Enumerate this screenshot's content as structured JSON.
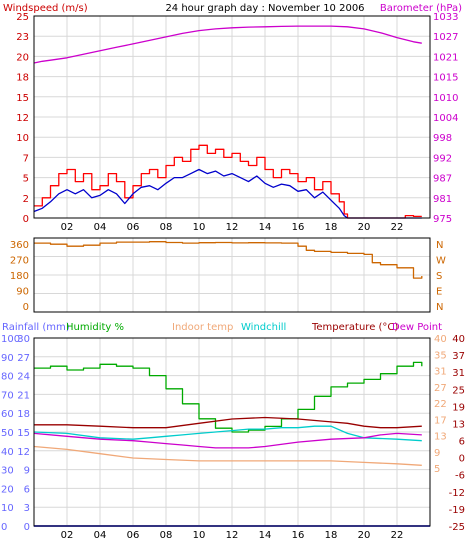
{
  "chart_data": [
    {
      "type": "line",
      "title": "24 hour graph day : November 10 2006",
      "left_axis_label": "Windspeed (m/s)",
      "right_axis_label": "Barometer (hPa)",
      "x_ticks": [
        "02",
        "04",
        "06",
        "08",
        "10",
        "12",
        "14",
        "16",
        "18",
        "20",
        "22"
      ],
      "x_range": [
        0,
        24
      ],
      "left_ylim": [
        0,
        25
      ],
      "left_ticks": [
        "0",
        "2",
        "5",
        "7",
        "10",
        "12",
        "15",
        "18",
        "20",
        "23",
        "25"
      ],
      "right_ylim": [
        975,
        1033
      ],
      "right_ticks": [
        "975",
        "981",
        "987",
        "992",
        "998",
        "1004",
        "1010",
        "1015",
        "1021",
        "1027",
        "1033"
      ],
      "grid": true,
      "colors": {
        "gust": "#ff0000",
        "wind": "#0000cc",
        "barometer": "#cc00cc",
        "left_label": "#cc0000"
      },
      "series": [
        {
          "axis": "right",
          "x": [
            0,
            0.5,
            1,
            2,
            3,
            4,
            5,
            6,
            7,
            8,
            9,
            10,
            11,
            12,
            13,
            14,
            15,
            16,
            17,
            18,
            19,
            20,
            21,
            22,
            23,
            23.5
          ],
          "values": [
            1019.5,
            1020,
            1020.3,
            1021,
            1022,
            1023,
            1024,
            1025,
            1026,
            1027,
            1028,
            1028.8,
            1029.3,
            1029.6,
            1029.8,
            1029.9,
            1030,
            1030.1,
            1030.1,
            1030.1,
            1029.9,
            1029.3,
            1028.2,
            1026.8,
            1025.6,
            1025.2
          ]
        },
        {
          "axis": "left",
          "x": [
            0,
            0.5,
            1,
            1.5,
            2,
            2.5,
            3,
            3.5,
            4,
            4.5,
            5,
            5.5,
            6,
            6.5,
            7,
            7.5,
            8,
            8.5,
            9,
            9.5,
            10,
            10.5,
            11,
            11.5,
            12,
            12.5,
            13,
            13.5,
            14,
            14.5,
            15,
            15.5,
            16,
            16.5,
            17,
            17.5,
            18,
            18.5,
            18.8,
            19,
            20,
            21,
            22,
            22.5,
            23,
            23.5
          ],
          "values": [
            1.5,
            2.5,
            4,
            5.5,
            6,
            4.5,
            5.5,
            3.5,
            4,
            5.5,
            4.5,
            2.5,
            4,
            5.5,
            6,
            5,
            6.5,
            7.5,
            7,
            8.5,
            9,
            8,
            8.5,
            7.5,
            8,
            7,
            6.5,
            7.5,
            6,
            5,
            6,
            5.5,
            4.5,
            5,
            3.5,
            4.5,
            3,
            2,
            0.5,
            0,
            0,
            0,
            0,
            0.3,
            0.2,
            0.2
          ]
        },
        {
          "axis": "left",
          "x": [
            0,
            0.5,
            1,
            1.5,
            2,
            2.5,
            3,
            3.5,
            4,
            4.5,
            5,
            5.5,
            6,
            6.5,
            7,
            7.5,
            8,
            8.5,
            9,
            9.5,
            10,
            10.5,
            11,
            11.5,
            12,
            12.5,
            13,
            13.5,
            14,
            14.5,
            15,
            15.5,
            16,
            16.5,
            17,
            17.5,
            18,
            18.5,
            18.8,
            19,
            20,
            21,
            22,
            23,
            23.5
          ],
          "values": [
            0.8,
            1.2,
            2,
            3,
            3.5,
            3,
            3.5,
            2.5,
            2.8,
            3.5,
            3,
            1.8,
            3,
            3.8,
            4,
            3.5,
            4.3,
            5,
            5,
            5.5,
            6,
            5.5,
            5.8,
            5.2,
            5.5,
            5,
            4.5,
            5.2,
            4.3,
            3.8,
            4.2,
            4,
            3.3,
            3.5,
            2.5,
            3.2,
            2.2,
            1.2,
            0.3,
            0,
            0,
            0,
            0,
            0,
            0
          ]
        }
      ]
    },
    {
      "type": "line",
      "x_ticks": [
        "02",
        "04",
        "06",
        "08",
        "10",
        "12",
        "14",
        "16",
        "18",
        "20",
        "22"
      ],
      "x_range": [
        0,
        24
      ],
      "ylim": [
        0,
        360
      ],
      "left_ticks": [
        "0",
        "90",
        "180",
        "270",
        "360"
      ],
      "right_ticks": [
        "N",
        "E",
        "S",
        "W",
        "N"
      ],
      "grid": true,
      "colors": {
        "direction": "#cc6600",
        "left_ticks": "#cc6600",
        "right_ticks": "#cc6600"
      },
      "series": [
        {
          "x": [
            0,
            1,
            2,
            3,
            4,
            5,
            6,
            7,
            8,
            9,
            10,
            11,
            12,
            13,
            14,
            15,
            16,
            16.5,
            17,
            18,
            19,
            20,
            20.5,
            21,
            22,
            23,
            23.5
          ],
          "values": [
            335,
            330,
            320,
            325,
            335,
            340,
            340,
            342,
            338,
            335,
            337,
            338,
            336,
            337,
            336,
            335,
            320,
            300,
            295,
            290,
            285,
            280,
            240,
            230,
            215,
            165,
            175
          ]
        }
      ]
    },
    {
      "type": "line",
      "x_ticks": [
        "02",
        "04",
        "06",
        "08",
        "10",
        "12",
        "14",
        "16",
        "18",
        "20",
        "22"
      ],
      "x_range": [
        0,
        24
      ],
      "legend": [
        "Rainfall (mm)",
        "Humidity %",
        "Indoor temp",
        "Windchill",
        "Temperature (°C)",
        "Dew Point"
      ],
      "legend_colors": [
        "#6666ff",
        "#00aa00",
        "#f0a878",
        "#00cccc",
        "#990000",
        "#cc00cc"
      ],
      "axis_1": {
        "ticks": [
          "0",
          "10",
          "20",
          "30",
          "40",
          "50",
          "60",
          "70",
          "80",
          "90",
          "100"
        ],
        "color": "#6666ff"
      },
      "axis_2": {
        "ticks": [
          "0",
          "3",
          "6",
          "9",
          "12",
          "15",
          "18",
          "21",
          "24",
          "27",
          "30"
        ],
        "color": "#6666ff"
      },
      "axis_3": {
        "ticks": [
          "5",
          "9",
          "13",
          "17",
          "22",
          "27",
          "31",
          "35",
          "40"
        ],
        "color": "#f0a878"
      },
      "axis_4": {
        "ticks": [
          "-25",
          "-19",
          "-12",
          "-6",
          "0",
          "6",
          "13",
          "19",
          "25",
          "31",
          "37",
          "40"
        ],
        "color": "#990000"
      },
      "humidity_ylim": [
        0,
        100
      ],
      "temperature_ylim": [
        -25,
        40
      ],
      "grid": true,
      "series": [
        {
          "name": "Rainfall (mm)",
          "axis": "humidity",
          "x": [
            0,
            24
          ],
          "values": [
            0,
            0
          ]
        },
        {
          "name": "Humidity %",
          "axis": "humidity",
          "x": [
            0,
            1,
            2,
            3,
            4,
            5,
            6,
            7,
            8,
            9,
            10,
            11,
            12,
            13,
            14,
            15,
            16,
            17,
            18,
            19,
            20,
            21,
            22,
            23,
            23.5
          ],
          "values": [
            84,
            85,
            83,
            84,
            86,
            85,
            84,
            80,
            73,
            65,
            57,
            52,
            50,
            51,
            53,
            57,
            62,
            69,
            74,
            76,
            78,
            81,
            85,
            87,
            85
          ]
        },
        {
          "name": "Indoor temp",
          "axis": "temperature",
          "x": [
            0,
            2,
            4,
            6,
            8,
            10,
            12,
            14,
            16,
            18,
            20,
            22,
            23.5
          ],
          "values": [
            2.5,
            1.5,
            0,
            -1.5,
            -2,
            -2.5,
            -2.5,
            -2.5,
            -2.5,
            -2.5,
            -3,
            -3.5,
            -4
          ]
        },
        {
          "name": "Windchill",
          "axis": "temperature",
          "x": [
            0,
            2,
            4,
            6,
            7,
            8,
            9,
            10,
            11,
            12,
            13,
            14,
            15,
            16,
            17,
            18,
            19,
            20,
            22,
            23.5
          ],
          "values": [
            7.5,
            7,
            5.5,
            5,
            5.5,
            6,
            6.5,
            7,
            7.5,
            8,
            8.5,
            8.5,
            9,
            9,
            9.5,
            9.5,
            7,
            5.5,
            5,
            4.5
          ]
        },
        {
          "name": "Temperature (°C)",
          "axis": "temperature",
          "x": [
            0,
            2,
            4,
            6,
            8,
            10,
            12,
            14,
            16,
            18,
            19,
            20,
            21,
            22,
            23.5
          ],
          "values": [
            10,
            10,
            9.5,
            9,
            9,
            10.5,
            12,
            12.5,
            12,
            11,
            10.5,
            9.5,
            9,
            9,
            9.5
          ]
        },
        {
          "name": "Dew Point",
          "axis": "temperature",
          "x": [
            0,
            2,
            4,
            6,
            7,
            8,
            9,
            10,
            11,
            12,
            13,
            14,
            16,
            18,
            20,
            21,
            22,
            23.5
          ],
          "values": [
            7,
            6,
            5,
            4.5,
            4,
            3.5,
            3,
            2.5,
            2,
            2,
            2,
            2.5,
            4,
            5,
            5.5,
            6.5,
            7,
            6.5
          ]
        }
      ]
    }
  ]
}
